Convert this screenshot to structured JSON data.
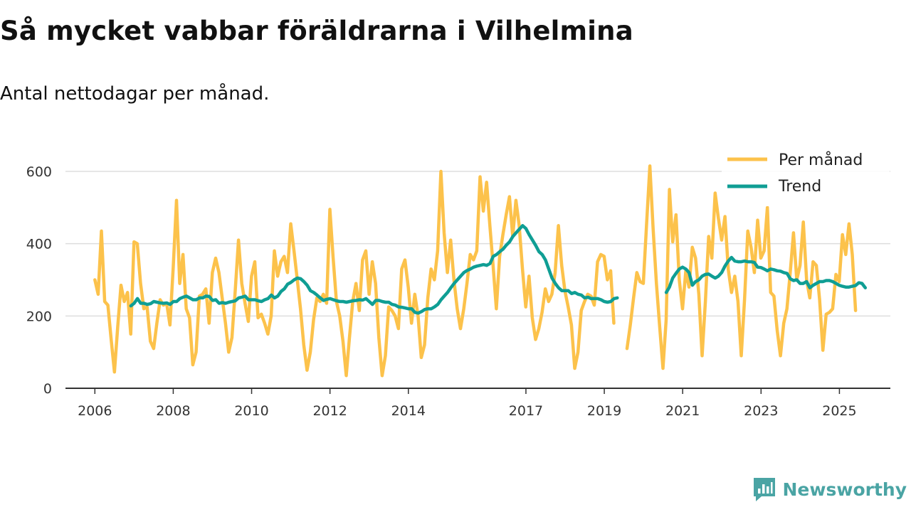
{
  "header": {
    "title": "Så mycket vabbar föräldrarna i Vilhelmina",
    "subtitle": "Antal nettodagar per månad."
  },
  "brand": {
    "name": "Newsworthy",
    "color": "#4aa4a4"
  },
  "chart_data": {
    "type": "line",
    "title": "Så mycket vabbar föräldrarna i Vilhelmina",
    "subtitle": "Antal nettodagar per månad.",
    "xlabel": "",
    "ylabel": "",
    "xlim": [
      2005.25,
      2026.3
    ],
    "ylim": [
      0,
      600
    ],
    "y_ticks": [
      0,
      200,
      400,
      600
    ],
    "x_ticks": [
      {
        "value": 2006,
        "label": "2006"
      },
      {
        "value": 2008,
        "label": "2008"
      },
      {
        "value": 2010,
        "label": "2010"
      },
      {
        "value": 2012,
        "label": "2012"
      },
      {
        "value": 2014,
        "label": "2014"
      },
      {
        "value": 2017,
        "label": "2017"
      },
      {
        "value": 2019,
        "label": "2019"
      },
      {
        "value": 2021,
        "label": "2021"
      },
      {
        "value": 2023,
        "label": "2023"
      },
      {
        "value": 2025,
        "label": "2025"
      }
    ],
    "grid": true,
    "legend_position": "top-right",
    "series": [
      {
        "name": "Per månad",
        "color": "#fcc24b",
        "segments": [
          {
            "x_start": 2006.0,
            "step": 0.0833,
            "values": [
              300,
              260,
              435,
              240,
              230,
              135,
              45,
              170,
              285,
              240,
              265,
              150,
              405,
              400,
              290,
              220,
              225,
              130,
              110,
              180,
              245,
              230,
              235,
              175,
              335,
              520,
              290,
              370,
              220,
              195,
              65,
              100,
              255,
              260,
              275,
              180,
              320,
              360,
              320,
              250,
              180,
              100,
              140,
              270,
              410,
              290,
              235,
              185,
              310,
              350,
              195,
              205,
              180,
              150,
              200,
              380,
              310,
              350,
              365,
              320,
              455,
              380,
              300,
              220,
              120,
              50,
              100,
              190,
              250,
              240,
              260,
              235,
              495,
              360,
              240,
              200,
              130,
              35,
              140,
              240,
              290,
              215,
              355,
              380,
              260,
              350,
              290,
              140,
              35,
              90,
              225,
              215,
              200,
              165,
              330,
              355,
              280,
              180,
              260,
              200,
              85,
              120,
              250,
              330,
              300,
              380,
              600,
              430,
              320,
              410,
              300,
              220,
              165,
              220,
              290,
              370,
              355,
              380,
              585,
              490,
              570,
              450,
              340,
              220,
              365,
              425,
              480,
              530,
              420,
              520,
              450,
              330,
              225,
              310,
              195,
              135,
              165,
              210,
              275,
              240,
              260,
              320,
              450,
              340,
              270,
              225,
              175,
              55,
              100,
              215,
              240,
              260,
              255,
              230,
              350,
              370,
              365,
              300,
              325,
              180
            ]
          },
          {
            "x_start": 2019.58,
            "step": 0.0833,
            "values": [
              110,
              175,
              250,
              320,
              295,
              290,
              455,
              615,
              440,
              290,
              170,
              55,
              190,
              550,
              405,
              480,
              300,
              220,
              325,
              280,
              390,
              360,
              260,
              90,
              240,
              420,
              360,
              540,
              470,
              410,
              475,
              330,
              265,
              310,
              240,
              90,
              245,
              435,
              390,
              320,
              465,
              360,
              380,
              500,
              265,
              255,
              160,
              90,
              180,
              220,
              320,
              430,
              300,
              340,
              460,
              300,
              250,
              350,
              340,
              245,
              105,
              205,
              210,
              220,
              315,
              295,
              425,
              370,
              455,
              370,
              215
            ]
          }
        ]
      },
      {
        "name": "Trend",
        "color": "#0f9e94",
        "segments": [
          {
            "x_start": 2006.92,
            "step": 0.0833,
            "values": [
              228,
              235,
              248,
              235,
              235,
              232,
              234,
              240,
              238,
              236,
              235,
              236,
              232,
              240,
              240,
              248,
              252,
              255,
              250,
              245,
              245,
              250,
              250,
              255,
              254,
              243,
              245,
              235,
              237,
              235,
              238,
              240,
              242,
              250,
              252,
              255,
              245,
              245,
              245,
              242,
              240,
              245,
              248,
              258,
              250,
              255,
              268,
              275,
              288,
              293,
              300,
              305,
              303,
              295,
              285,
              270,
              265,
              258,
              250,
              243,
              246,
              248,
              245,
              242,
              240,
              240,
              238,
              240,
              242,
              243,
              245,
              244,
              248,
              240,
              232,
              243,
              243,
              240,
              238,
              238,
              232,
              230,
              225,
              224,
              222,
              220,
              220,
              210,
              208,
              212,
              218,
              220,
              220,
              225,
              232,
              245,
              255,
              265,
              278,
              290,
              300,
              310,
              320,
              326,
              330,
              335,
              338,
              340,
              342,
              340,
              345,
              365,
              370,
              378,
              385,
              396,
              405,
              420,
              430,
              440,
              450,
              442,
              425,
              410,
              395,
              378,
              370,
              355,
              330,
              305,
              290,
              278,
              270,
              270,
              270,
              262,
              265,
              260,
              258,
              250,
              252,
              248,
              248,
              248,
              245,
              240,
              238,
              240,
              248,
              250
            ]
          },
          {
            "x_start": 2020.58,
            "step": 0.0833,
            "values": [
              265,
              280,
              305,
              318,
              330,
              335,
              330,
              320,
              285,
              295,
              300,
              310,
              315,
              316,
              310,
              305,
              310,
              320,
              338,
              352,
              362,
              352,
              350,
              350,
              352,
              350,
              350,
              348,
              335,
              334,
              330,
              325,
              330,
              328,
              325,
              324,
              320,
              318,
              303,
              298,
              300,
              290,
              290,
              295,
              278,
              285,
              290,
              295,
              295,
              298,
              298,
              295,
              290,
              285,
              282,
              280,
              280,
              282,
              284,
              292,
              290,
              278
            ]
          }
        ]
      }
    ]
  }
}
